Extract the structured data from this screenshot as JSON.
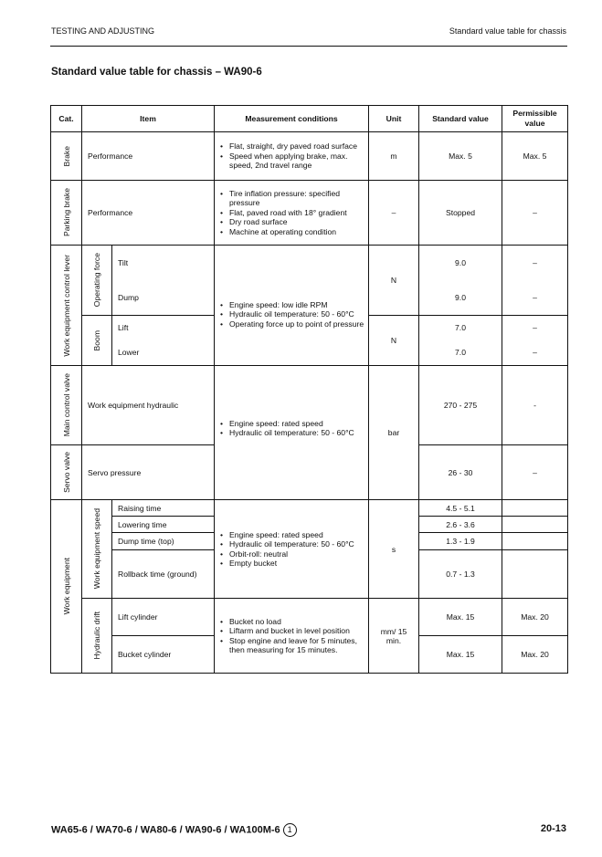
{
  "header": {
    "section": "TESTING AND ADJUSTING",
    "right": "Standard value table for chassis"
  },
  "title": "Standard value table for chassis – WA90-6",
  "columns": {
    "cat": "Cat.",
    "item": "Item",
    "conditions": "Measurement conditions",
    "unit": "Unit",
    "standard": "Standard value",
    "permissible": "Permissible value"
  },
  "brake": {
    "cat": "Brake",
    "item": "Performance",
    "conditions": [
      "Flat, straight, dry paved road surface",
      "Speed when applying brake, max. speed, 2nd travel range"
    ],
    "unit": "m",
    "standard": "Max. 5",
    "permissible": "Max. 5"
  },
  "parking": {
    "cat": "Parking brake",
    "item": "Performance",
    "conditions": [
      "Tire inflation pressure: specified pressure",
      "Flat, paved road with 18° gradient",
      "Dry road surface",
      "Machine at operating condition"
    ],
    "unit": "–",
    "standard": "Stopped",
    "permissible": "–"
  },
  "lever": {
    "cat": "Work equipment control lever",
    "conditions": [
      "Engine speed: low idle RPM",
      "Hydraulic oil temperature: 50 - 60°C",
      "Operating force up to point of pressure"
    ],
    "opforce": {
      "sub": "Operating force",
      "unit": "N",
      "rows": [
        {
          "item": "Tilt",
          "standard": "9.0",
          "permissible": "–"
        },
        {
          "item": "Dump",
          "standard": "9.0",
          "permissible": "–"
        }
      ]
    },
    "boom": {
      "sub": "Boom",
      "unit": "N",
      "rows": [
        {
          "item": "Lift",
          "standard": "7.0",
          "permissible": "–"
        },
        {
          "item": "Lower",
          "standard": "7.0",
          "permissible": "–"
        }
      ]
    }
  },
  "mcv": {
    "cat": "Main control valve",
    "item": "Work equipment hydraulic",
    "standard": "270 - 275",
    "permissible": "-",
    "conditions": [
      "Engine speed: rated speed",
      "Hydraulic oil temperature: 50 - 60°C"
    ],
    "unit": "bar"
  },
  "servo": {
    "cat": "Servo valve",
    "item": "Servo pressure",
    "standard": "26 - 30",
    "permissible": "–"
  },
  "we": {
    "cat": "Work equipment",
    "speed": {
      "sub": "Work equipment speed",
      "conditions": [
        "Engine speed: rated speed",
        "Hydraulic oil temperature: 50 - 60°C",
        "Orbit-roll: neutral",
        "Empty bucket"
      ],
      "unit": "s",
      "rows": [
        {
          "item": "Raising time",
          "standard": "4.5 - 5.1"
        },
        {
          "item": "Lowering time",
          "standard": "2.6 - 3.6"
        },
        {
          "item": "Dump time (top)",
          "standard": "1.3 - 1.9"
        },
        {
          "item": "Rollback time (ground)",
          "standard": "0.7 - 1.3"
        }
      ]
    },
    "drift": {
      "sub": "Hydraulic drift",
      "conditions": [
        "Bucket no load",
        "Liftarm and bucket in level position",
        "Stop engine and leave for 5 minutes, then measuring for 15 minutes."
      ],
      "unit": "mm/ 15 min.",
      "rows": [
        {
          "item": "Lift cylinder",
          "standard": "Max. 15",
          "permissible": "Max. 20"
        },
        {
          "item": "Bucket cylinder",
          "standard": "Max. 15",
          "permissible": "Max. 20"
        }
      ]
    }
  },
  "footer": {
    "models": "WA65-6 / WA70-6 / WA80-6 / WA90-6 / WA100M-6",
    "revision": "1",
    "page": "20-13"
  }
}
